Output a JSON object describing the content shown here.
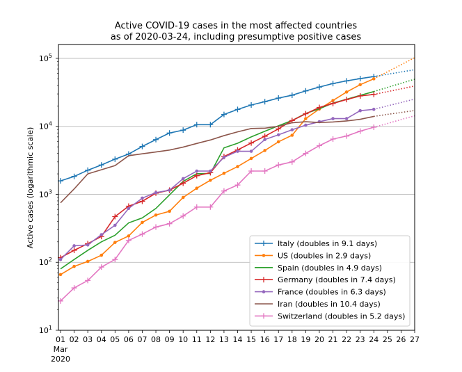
{
  "chart_data": {
    "type": "line",
    "title_line1": "Active COVID-19 cases in the most affected countries",
    "title_line2": "as of 2020-03-24, including presumptive positive cases",
    "ylabel": "Active cases (logarithmic scale)",
    "y_scale": "log",
    "ylim": [
      10,
      160000
    ],
    "y_ticks": [
      {
        "value": 10,
        "base": "10",
        "exp": "1"
      },
      {
        "value": 100,
        "base": "10",
        "exp": "2"
      },
      {
        "value": 1000,
        "base": "10",
        "exp": "3"
      },
      {
        "value": 10000,
        "base": "10",
        "exp": "4"
      },
      {
        "value": 100000,
        "base": "10",
        "exp": "5"
      }
    ],
    "x_ticks": [
      "01",
      "02",
      "03",
      "04",
      "05",
      "06",
      "07",
      "08",
      "09",
      "10",
      "11",
      "12",
      "13",
      "14",
      "15",
      "16",
      "17",
      "18",
      "19",
      "20",
      "21",
      "22",
      "23",
      "24",
      "25",
      "26",
      "27"
    ],
    "x_first_tick_extra": [
      "Mar",
      "2020"
    ],
    "grid": "horizontal",
    "legend_position": "lower-right",
    "series": [
      {
        "name": "Italy (doubles in 9.1 days)",
        "color": "#1f77b4",
        "marker": "plus",
        "values": [
          1577,
          1835,
          2263,
          2706,
          3296,
          3916,
          5061,
          6387,
          7985,
          8794,
          10590,
          10590,
          14955,
          17750,
          20603,
          23073,
          26062,
          28710,
          33190,
          37860,
          42681,
          46638,
          50418,
          54030
        ],
        "projection": [
          54030,
          58355,
          63026,
          68069
        ]
      },
      {
        "name": "US (doubles in 2.9 days)",
        "color": "#ff7f0e",
        "marker": "dot",
        "values": [
          66,
          87,
          103,
          127,
          196,
          244,
          386,
          496,
          563,
          900,
          1230,
          1610,
          2040,
          2560,
          3370,
          4420,
          5930,
          7400,
          13000,
          18000,
          24000,
          32000,
          41000,
          50000
        ],
        "projection": [
          50000,
          63500,
          80600,
          102400
        ]
      },
      {
        "name": "Spain (doubles in 4.9 days)",
        "color": "#2ca02c",
        "marker": "none",
        "values": [
          80,
          110,
          150,
          200,
          250,
          380,
          450,
          620,
          980,
          1550,
          2010,
          2030,
          4830,
          5650,
          7000,
          8480,
          10200,
          12200,
          15500,
          18100,
          22000,
          25000,
          28600,
          32500
        ],
        "projection": [
          32500,
          37400,
          43000,
          49400
        ]
      },
      {
        "name": "Germany (doubles in 7.4 days)",
        "color": "#d62728",
        "marker": "plus",
        "values": [
          117,
          150,
          188,
          240,
          470,
          670,
          790,
          1040,
          1150,
          1457,
          1880,
          2080,
          3600,
          4500,
          5690,
          7150,
          9180,
          12170,
          15300,
          19000,
          21700,
          24800,
          28000,
          29500
        ],
        "projection": [
          29500,
          32400,
          35600,
          39200
        ]
      },
      {
        "name": "France (doubles in 6.3 days)",
        "color": "#9467bd",
        "marker": "dot",
        "values": [
          110,
          175,
          180,
          255,
          350,
          620,
          880,
          1060,
          1150,
          1700,
          2200,
          2200,
          3500,
          4300,
          4300,
          6400,
          7500,
          8900,
          10400,
          11700,
          13000,
          13000,
          17000,
          17800
        ],
        "projection": [
          17800,
          20000,
          22400,
          25200
        ]
      },
      {
        "name": "Iran (doubles in 10.4 days)",
        "color": "#8c564b",
        "marker": "none",
        "values": [
          750,
          1200,
          2000,
          2300,
          2650,
          3700,
          3950,
          4200,
          4480,
          4950,
          5600,
          6300,
          7300,
          8300,
          9300,
          9400,
          10000,
          11300,
          11700,
          11400,
          11600,
          12000,
          12700,
          14000
        ],
        "projection": [
          14000,
          15000,
          16000,
          17100
        ]
      },
      {
        "name": "Switzerland (doubles in 5.2 days)",
        "color": "#e377c2",
        "marker": "plus",
        "values": [
          27,
          42,
          54,
          85,
          110,
          210,
          260,
          330,
          370,
          480,
          650,
          650,
          1120,
          1370,
          2200,
          2200,
          2700,
          3000,
          4000,
          5200,
          6500,
          7200,
          8500,
          9700
        ],
        "projection": [
          9700,
          11000,
          12600,
          14300
        ]
      }
    ]
  }
}
